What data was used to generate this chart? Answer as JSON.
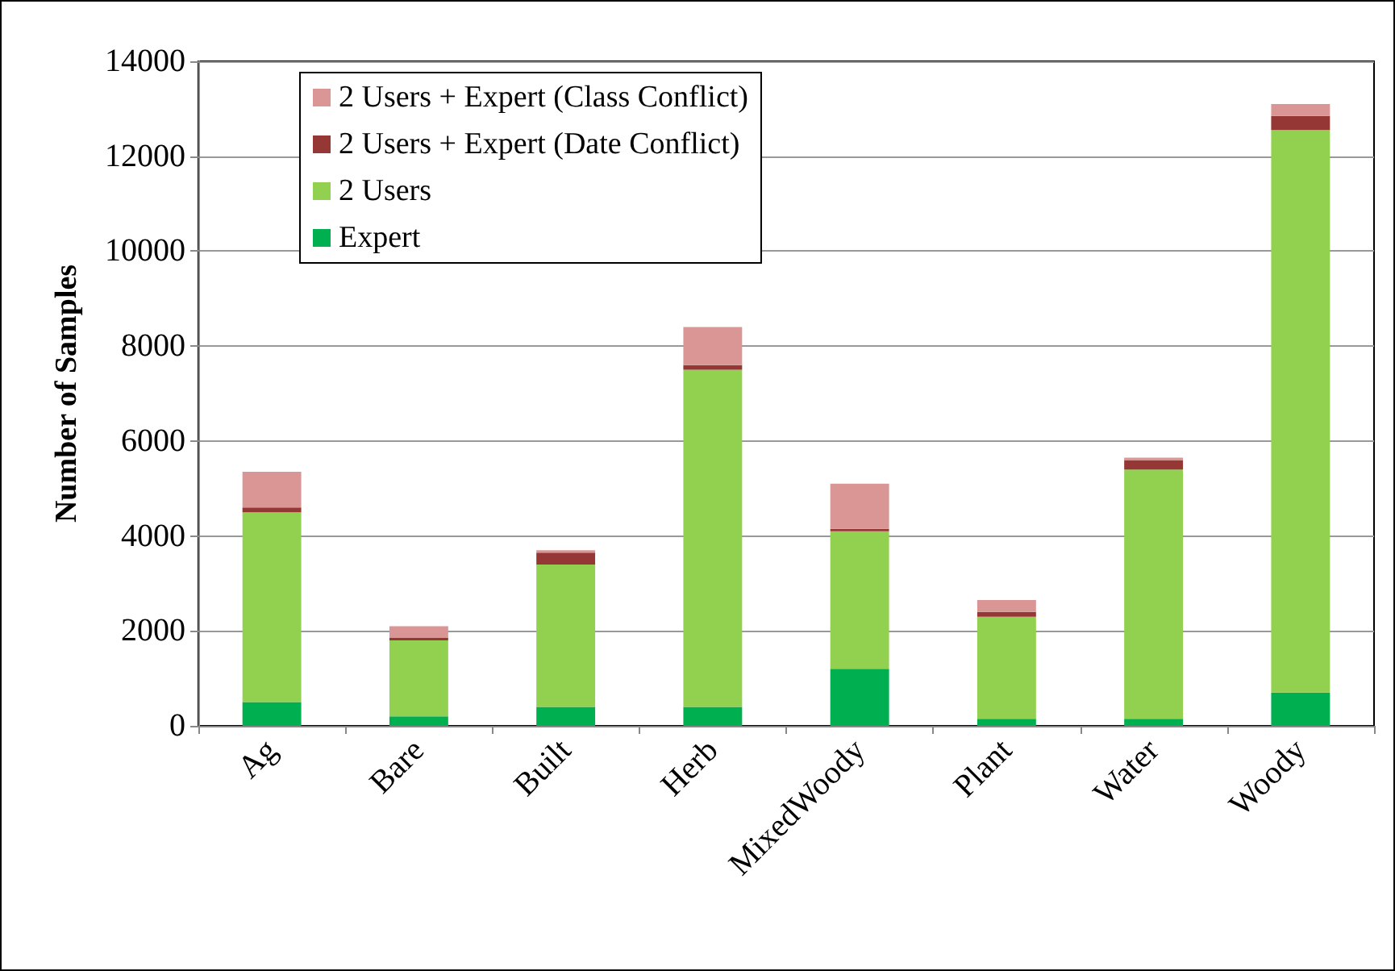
{
  "chart_data": {
    "type": "bar",
    "stacked": true,
    "ylabel": "Number of Samples",
    "categories": [
      "Ag",
      "Bare",
      "Built",
      "Herb",
      "MixedWoody",
      "Plant",
      "Water",
      "Woody"
    ],
    "series": [
      {
        "name": "Expert",
        "color": "#00b050",
        "values": [
          500,
          200,
          400,
          400,
          1200,
          150,
          150,
          700
        ]
      },
      {
        "name": "2 Users",
        "color": "#92d050",
        "values": [
          4000,
          1600,
          3000,
          7100,
          2900,
          2150,
          5250,
          11850
        ]
      },
      {
        "name": "2 Users + Expert (Date Conflict)",
        "color": "#953735",
        "values": [
          100,
          50,
          250,
          100,
          50,
          100,
          200,
          300
        ]
      },
      {
        "name": "2 Users + Expert (Class Conflict)",
        "color": "#d99694",
        "values": [
          750,
          250,
          50,
          800,
          950,
          250,
          50,
          250
        ]
      }
    ],
    "ylim": [
      0,
      14000
    ],
    "yticks": [
      0,
      2000,
      4000,
      6000,
      8000,
      10000,
      12000,
      14000
    ],
    "grid": "y",
    "legend": "top left"
  }
}
